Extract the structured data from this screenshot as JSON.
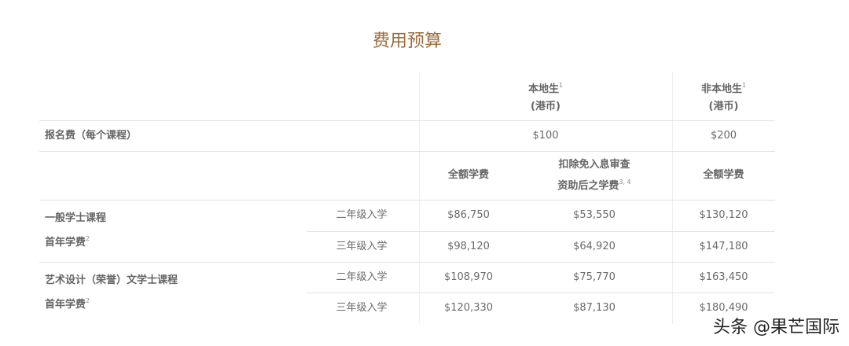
{
  "title": "费用预算",
  "header": {
    "local": {
      "label": "本地生",
      "note": "1",
      "currency": "(港币)"
    },
    "nonlocal": {
      "label": "非本地生",
      "note": "1",
      "currency": "(港币)"
    }
  },
  "application_fee": {
    "label": "报名费（每个课程）",
    "local": "$100",
    "nonlocal": "$200"
  },
  "subheader": {
    "local_full": "全额学费",
    "local_after_line1": "扣除免入息审查",
    "local_after_line2": "资助后之学费",
    "local_after_note": "3, 4",
    "nonlocal_full": "全额学费"
  },
  "programs": [
    {
      "name": "一般学士课程",
      "sub": "首年学费",
      "note": "2",
      "rows": [
        {
          "entry": "二年级入学",
          "local_full": "$86,750",
          "local_after": "$53,550",
          "nonlocal_full": "$130,120"
        },
        {
          "entry": "三年级入学",
          "local_full": "$98,120",
          "local_after": "$64,920",
          "nonlocal_full": "$147,180"
        }
      ]
    },
    {
      "name": "艺术设计（荣誉）文学士课程",
      "sub": "首年学费",
      "note": "2",
      "rows": [
        {
          "entry": "二年级入学",
          "local_full": "$108,970",
          "local_after": "$75,770",
          "nonlocal_full": "$163,450"
        },
        {
          "entry": "三年级入学",
          "local_full": "$120,330",
          "local_after": "$87,130",
          "nonlocal_full": "$180,490"
        }
      ]
    }
  ],
  "watermark": "头条 @果芒国际",
  "colors": {
    "title": "#9c6b3c",
    "text": "#6b6b6b",
    "border": "#e2e2e2"
  }
}
